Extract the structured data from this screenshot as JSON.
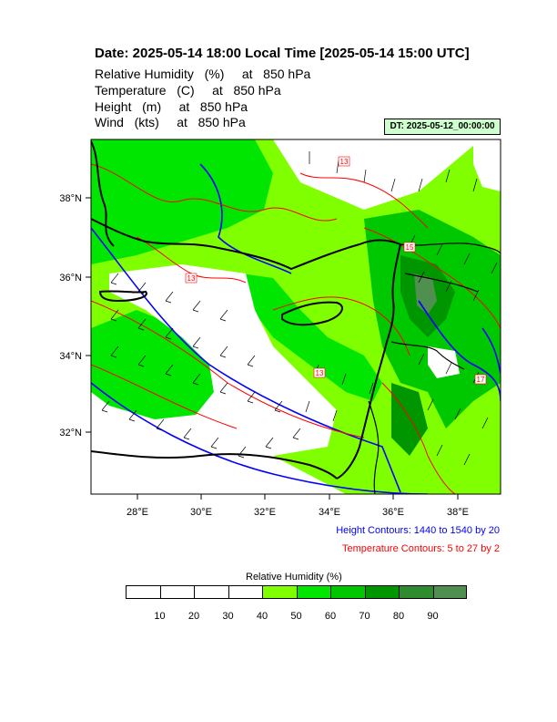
{
  "header": {
    "title": "Date: 2025-05-14  18:00 Local Time [2025-05-14  15:00 UTC]",
    "variables": [
      "Relative Humidity   (%)     at   850 hPa",
      "Temperature   (C)     at   850 hPa",
      "Height   (m)     at   850 hPa",
      "Wind   (kts)     at   850 hPa"
    ],
    "dt_label": "DT: 2025-05-12_00:00:00"
  },
  "map": {
    "lat_ticks": [
      "38°N",
      "36°N",
      "34°N",
      "32°N"
    ],
    "lon_ticks": [
      "28°E",
      "30°E",
      "32°E",
      "34°E",
      "36°E",
      "38°E"
    ],
    "contour_labels": [
      "13",
      "13",
      "13",
      "15",
      "17"
    ],
    "colors": {
      "height_contours": "#0000ff",
      "temperature_contours": "#ff0000",
      "coastline": "#000000",
      "wind_barbs": "#000000"
    }
  },
  "notes": {
    "height_contours": "Height Contours: 1440 to 1540 by 20",
    "temperature_contours": "Temperature Contours: 5 to 27 by 2"
  },
  "colorbar": {
    "title": "Relative Humidity  (%)",
    "labels": [
      "10",
      "20",
      "30",
      "40",
      "50",
      "60",
      "70",
      "80",
      "90"
    ],
    "colors": [
      "#ffffff",
      "#ffffff",
      "#ffffff",
      "#ffffff",
      "#80ff00",
      "#00e600",
      "#00c800",
      "#009600",
      "#2e8b2e",
      "#4f8f4f"
    ]
  }
}
